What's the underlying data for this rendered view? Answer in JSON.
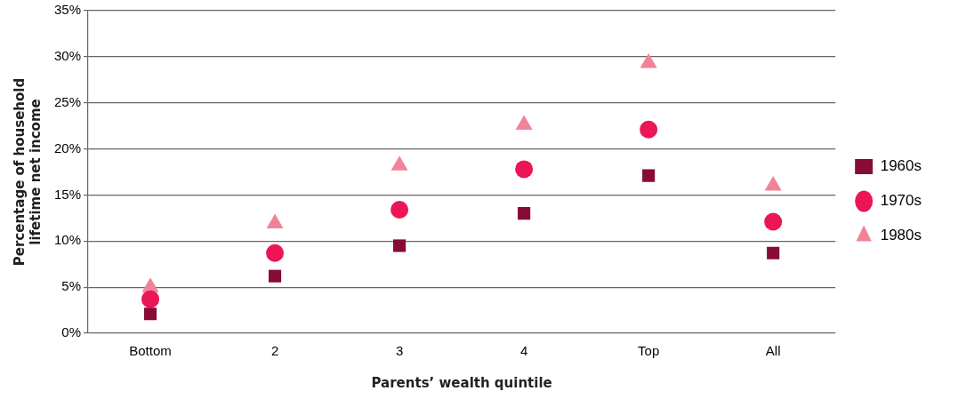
{
  "chart_data": {
    "type": "scatter",
    "xlabel": "Parents’ wealth quintile",
    "ylabel": "Percentage of household\nlifetime net income",
    "categories": [
      "Bottom",
      "2",
      "3",
      "4",
      "Top",
      "All"
    ],
    "series": [
      {
        "name": "1960s",
        "color": "#870c35",
        "marker": "square",
        "values": [
          2.1,
          6.2,
          9.5,
          13.0,
          17.1,
          8.7
        ]
      },
      {
        "name": "1970s",
        "color": "#ec1556",
        "marker": "circle",
        "values": [
          3.7,
          8.7,
          13.4,
          17.8,
          22.1,
          12.1
        ]
      },
      {
        "name": "1980s",
        "color": "#f18399",
        "marker": "triangle",
        "values": [
          5.0,
          11.9,
          18.2,
          22.6,
          29.3,
          16.0
        ]
      }
    ],
    "ylim": [
      0,
      35
    ],
    "yticks": [
      {
        "value": 0,
        "label": "0%"
      },
      {
        "value": 5,
        "label": "5%"
      },
      {
        "value": 10,
        "label": "10%"
      },
      {
        "value": 15,
        "label": "15%"
      },
      {
        "value": 20,
        "label": "20%"
      },
      {
        "value": 25,
        "label": "25%"
      },
      {
        "value": 30,
        "label": "30%"
      },
      {
        "value": 35,
        "label": "35%"
      }
    ],
    "grid": "y",
    "legend": "right"
  }
}
